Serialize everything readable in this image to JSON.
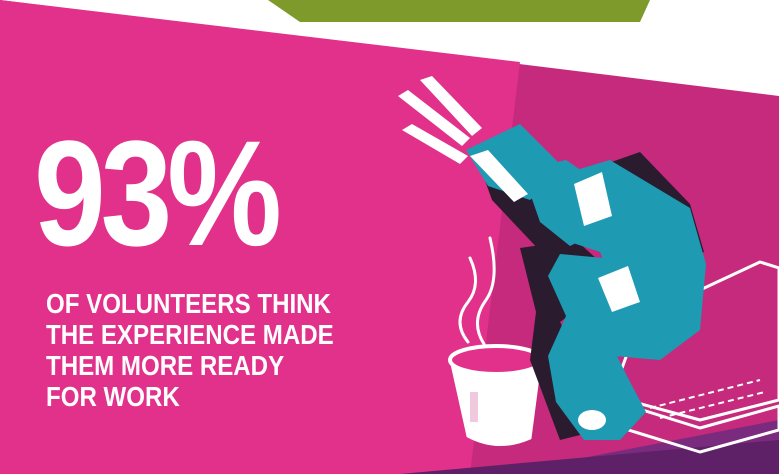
{
  "stat": {
    "value": "93%",
    "caption_lines": [
      "OF VOLUNTEERS THINK",
      "THE EXPERIENCE MADE",
      "THEM MORE READY",
      "FOR WORK"
    ]
  },
  "colors": {
    "pink": "#e2318b",
    "pink_dark": "#c62a7c",
    "green": "#7d9a2b",
    "purple": "#7a2b7e",
    "teal": "#1e9ab2",
    "drill_shadow": "#2b1b2e"
  },
  "icons": [
    "drill-icon",
    "coffee-cup-icon",
    "laptop-icon",
    "steam-icon"
  ]
}
